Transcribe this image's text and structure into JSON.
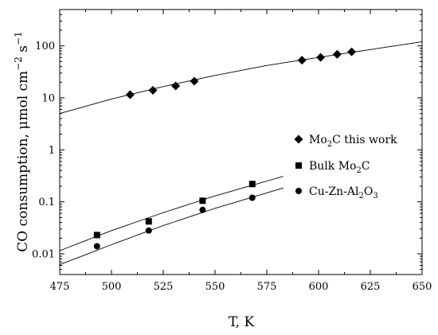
{
  "chart_data": {
    "type": "scatter",
    "title": "",
    "xlabel": "T, K",
    "ylabel_parts": {
      "main": "CO consumption, μmol cm",
      "sup1": "−2",
      "mid": " s",
      "sup2": "−1"
    },
    "xlim": [
      475,
      650
    ],
    "ylim": [
      0.004,
      500
    ],
    "yscale": "log",
    "x_ticks": [
      475,
      500,
      525,
      550,
      575,
      600,
      625,
      650
    ],
    "x_tick_labels": [
      "475",
      "500",
      "525",
      "550",
      "575",
      "600",
      "625",
      "650"
    ],
    "y_ticks": [
      0.01,
      0.1,
      1,
      10,
      100
    ],
    "y_tick_labels": [
      "0.01",
      "0.1",
      "1",
      "10",
      "100"
    ],
    "legend_position": "right",
    "series": [
      {
        "name": "Mo2C this work",
        "legend": {
          "pre": "Mo",
          "sub": "2",
          "post": "C this work"
        },
        "marker": "diamond",
        "x": [
          509,
          520,
          531,
          540,
          592,
          601,
          609,
          616
        ],
        "y": [
          11.5,
          14,
          17,
          21,
          53,
          60,
          69,
          77
        ],
        "fit": [
          [
            475,
            5.0
          ],
          [
            500,
            9.5
          ],
          [
            525,
            16.5
          ],
          [
            550,
            27
          ],
          [
            575,
            42
          ],
          [
            600,
            60
          ],
          [
            625,
            85
          ],
          [
            650,
            120
          ]
        ]
      },
      {
        "name": "Bulk Mo2C",
        "legend": {
          "pre": "Bulk Mo",
          "sub": "2",
          "post": "C"
        },
        "marker": "square",
        "x": [
          493,
          518,
          544,
          568
        ],
        "y": [
          0.023,
          0.042,
          0.105,
          0.22
        ],
        "fit": [
          [
            475,
            0.0115
          ],
          [
            500,
            0.028
          ],
          [
            525,
            0.062
          ],
          [
            550,
            0.13
          ],
          [
            583,
            0.31
          ]
        ]
      },
      {
        "name": "Cu-Zn-Al2O3",
        "legend": {
          "pre": "Cu-Zn-Al",
          "sub": "2",
          "post": "O",
          "sub2": "3"
        },
        "marker": "circle",
        "x": [
          493,
          518,
          544,
          568
        ],
        "y": [
          0.014,
          0.028,
          0.07,
          0.12
        ],
        "fit": [
          [
            475,
            0.0062
          ],
          [
            500,
            0.015
          ],
          [
            525,
            0.035
          ],
          [
            550,
            0.075
          ],
          [
            583,
            0.185
          ]
        ]
      }
    ]
  }
}
